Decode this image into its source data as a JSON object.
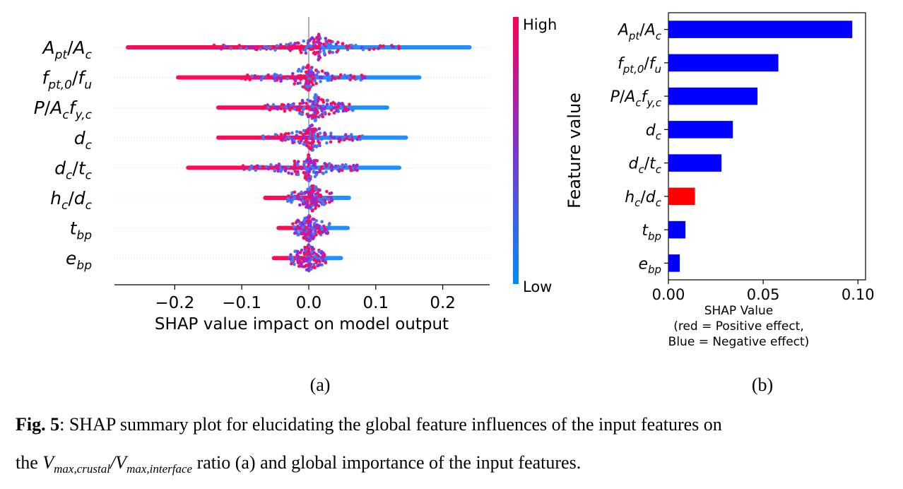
{
  "chart_data": [
    {
      "type": "scatter",
      "subtype": "shap-beeswarm",
      "features": [
        {
          "label": "A_pt/A_c",
          "min": -0.27,
          "max": 0.24,
          "peak": 0.015
        },
        {
          "label": "f_pt,0/f_u",
          "min": -0.195,
          "max": 0.165,
          "peak": 0.0
        },
        {
          "label": "P/A_c f_y,c",
          "min": -0.135,
          "max": 0.117,
          "peak": 0.01
        },
        {
          "label": "d_c",
          "min": -0.135,
          "max": 0.145,
          "peak": 0.005
        },
        {
          "label": "d_c/t_c",
          "min": -0.18,
          "max": 0.135,
          "peak": 0.0
        },
        {
          "label": "h_c/d_c",
          "min": -0.065,
          "max": 0.06,
          "peak": 0.005
        },
        {
          "label": "t_bp",
          "min": -0.045,
          "max": 0.058,
          "peak": 0.0
        },
        {
          "label": "e_bp",
          "min": -0.052,
          "max": 0.048,
          "peak": 0.0
        }
      ],
      "xlabel": "SHAP value impact on model output",
      "xticks": [
        "−0.2",
        "−0.1",
        "0.0",
        "0.1",
        "0.2"
      ],
      "xtick_values": [
        -0.2,
        -0.1,
        0.0,
        0.1,
        0.2
      ],
      "xlim": [
        -0.29,
        0.27
      ],
      "colorbar": {
        "label": "Feature value",
        "high": "High",
        "low": "Low",
        "color_high": "#ff0052",
        "color_low": "#008bfb"
      },
      "panel": "(a)"
    },
    {
      "type": "bar",
      "orientation": "horizontal",
      "categories": [
        "A_pt/A_c",
        "f_pt,0/f_u",
        "P/A_c f_y,c",
        "d_c",
        "d_c/t_c",
        "h_c/d_c",
        "t_bp",
        "e_bp"
      ],
      "values": [
        0.097,
        0.058,
        0.047,
        0.034,
        0.028,
        0.014,
        0.009,
        0.006
      ],
      "colors": [
        "#0000ff",
        "#0000ff",
        "#0000ff",
        "#0000ff",
        "#0000ff",
        "#ff0000",
        "#0000ff",
        "#0000ff"
      ],
      "xlabel_lines": [
        "SHAP Value",
        "(red = Positive effect,",
        "Blue = Negative effect)"
      ],
      "xticks": [
        "0.00",
        "0.05",
        "0.10"
      ],
      "xtick_values": [
        0.0,
        0.05,
        0.1
      ],
      "xlim": [
        0,
        0.104
      ],
      "panel": "(b)"
    }
  ],
  "caption": {
    "fig_label": "Fig. 5",
    "line1_rest": ": SHAP summary plot for elucidating the global feature influences of the input features on",
    "line2_pre": "the ",
    "line2_post": " ratio (a) and global importance of the input features."
  }
}
